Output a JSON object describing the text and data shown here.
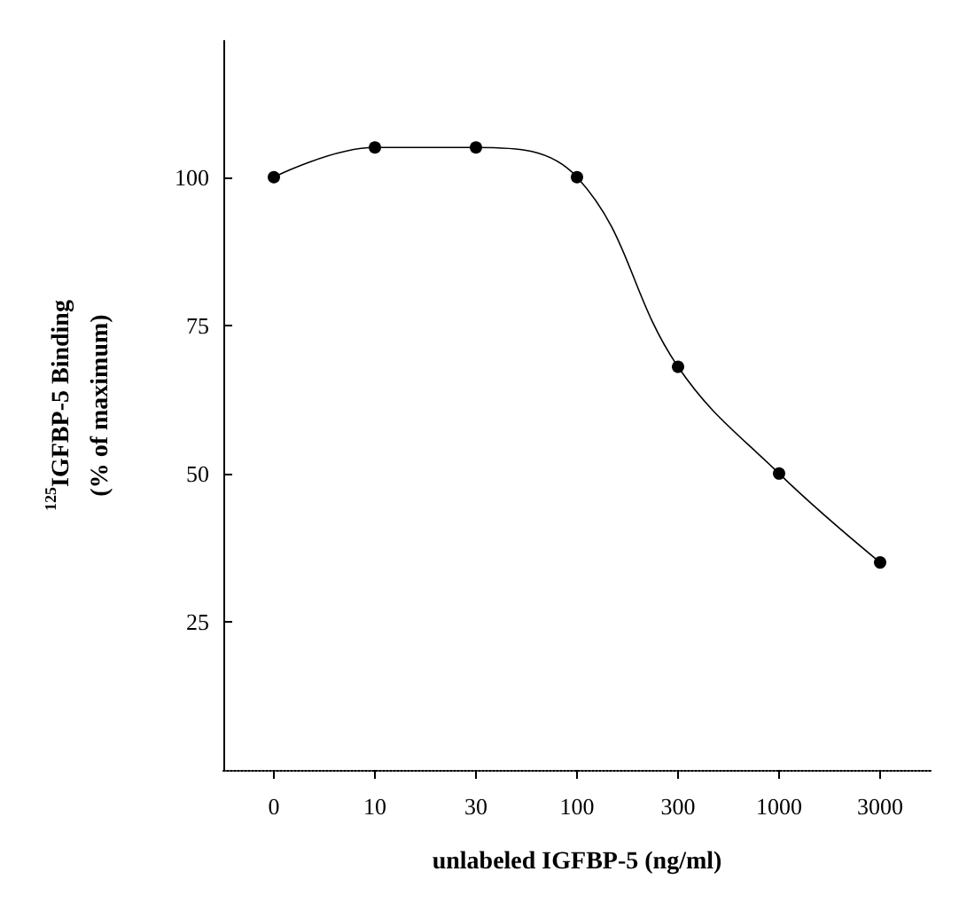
{
  "chart_data": {
    "type": "line",
    "xlabel": "unlabeled IGFBP-5 (ng/ml)",
    "ylabel": "$^{125}$IGFBP-5 Binding\n(% of maximum)",
    "categories": [
      "0",
      "10",
      "30",
      "100",
      "300",
      "1000",
      "3000"
    ],
    "series": [
      {
        "color": "#000000",
        "values": [
          100,
          105,
          105,
          100,
          68,
          50,
          35
        ]
      }
    ],
    "ylim": [
      0,
      123
    ],
    "yticks": [
      25,
      50,
      75,
      100
    ],
    "marker": "circle",
    "line_style": "solid"
  }
}
